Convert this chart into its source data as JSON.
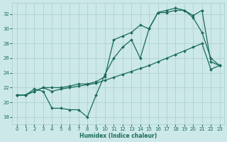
{
  "xlabel": "Humidex (Indice chaleur)",
  "bg_color": "#cce8e8",
  "grid_color": "#aacccc",
  "line_color": "#1a6b5a",
  "xlim": [
    -0.5,
    23.5
  ],
  "ylim": [
    17.0,
    33.5
  ],
  "xticks": [
    0,
    1,
    2,
    3,
    4,
    5,
    6,
    7,
    8,
    9,
    10,
    11,
    12,
    13,
    14,
    15,
    16,
    17,
    18,
    19,
    20,
    21,
    22,
    23
  ],
  "yticks": [
    18,
    20,
    22,
    24,
    26,
    28,
    30,
    32
  ],
  "line1_x": [
    0,
    1,
    2,
    3,
    4,
    5,
    6,
    7,
    8,
    9,
    10,
    11,
    12,
    13,
    14,
    15,
    16,
    17,
    18,
    19,
    20,
    21,
    22,
    23
  ],
  "line1_y": [
    21.0,
    21.0,
    21.5,
    22.0,
    21.5,
    21.8,
    22.0,
    22.2,
    22.4,
    22.6,
    23.0,
    23.4,
    23.8,
    24.2,
    24.6,
    25.0,
    25.5,
    26.0,
    26.5,
    27.0,
    27.5,
    28.0,
    24.5,
    25.0
  ],
  "line2_x": [
    0,
    1,
    2,
    3,
    4,
    5,
    6,
    7,
    8,
    9,
    10,
    11,
    12,
    13,
    14,
    15,
    16,
    17,
    18,
    19,
    20,
    21,
    22,
    23
  ],
  "line2_y": [
    21.0,
    21.0,
    21.8,
    21.5,
    19.2,
    19.2,
    19.0,
    19.0,
    18.0,
    21.0,
    23.8,
    26.0,
    27.5,
    28.5,
    26.0,
    30.0,
    32.2,
    32.2,
    32.5,
    32.5,
    31.5,
    29.5,
    26.0,
    25.0
  ],
  "line3_x": [
    0,
    1,
    2,
    3,
    4,
    5,
    6,
    7,
    8,
    9,
    10,
    11,
    12,
    13,
    14,
    15,
    16,
    17,
    18,
    19,
    20,
    21,
    22,
    23
  ],
  "line3_y": [
    21.0,
    21.0,
    21.5,
    22.0,
    22.0,
    22.0,
    22.2,
    22.5,
    22.5,
    22.8,
    23.5,
    28.5,
    29.0,
    29.5,
    30.5,
    30.0,
    32.2,
    32.5,
    32.8,
    32.5,
    31.8,
    32.5,
    25.5,
    25.0
  ]
}
